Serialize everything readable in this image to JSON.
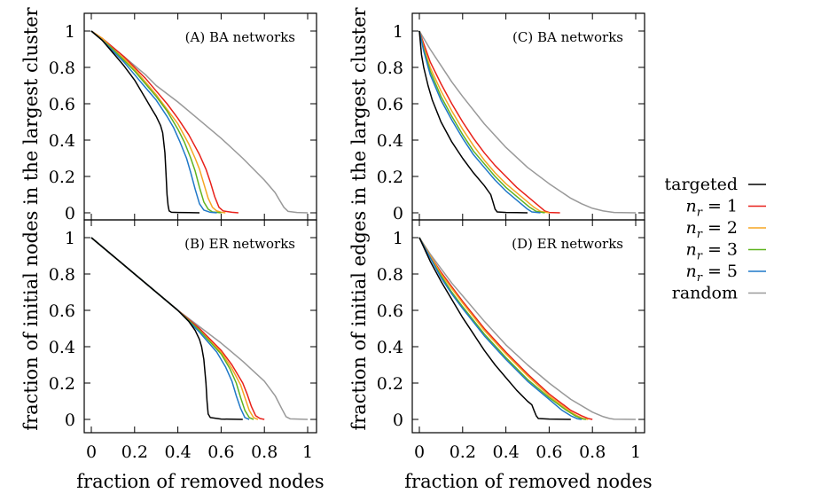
{
  "figure": {
    "xlabel": "fraction of removed nodes",
    "ylabel_left": "fraction of initial nodes in the largest cluster",
    "ylabel_right": "fraction of initial edges in the largest cluster"
  },
  "legend": {
    "placement": "right",
    "entries": [
      {
        "key": "targeted",
        "label": "targeted",
        "color": "#000000"
      },
      {
        "key": "nr1",
        "label": "n",
        "sub": "r",
        "suffix": " = 1",
        "color": "#e8211a"
      },
      {
        "key": "nr2",
        "label": "n",
        "sub": "r",
        "suffix": " = 2",
        "color": "#f5a623"
      },
      {
        "key": "nr3",
        "label": "n",
        "sub": "r",
        "suffix": " = 3",
        "color": "#5fb31f"
      },
      {
        "key": "nr5",
        "label": "n",
        "sub": "r",
        "suffix": " = 5",
        "color": "#1f78c8"
      },
      {
        "key": "random",
        "label": "random",
        "color": "#999999"
      }
    ]
  },
  "chart_data": [
    {
      "type": "line",
      "panel": "A",
      "title": "(A)  BA networks",
      "xlim": [
        0,
        1
      ],
      "ylim": [
        0,
        1
      ],
      "xticks": [
        "0",
        "0.2",
        "0.4",
        "0.6",
        "0.8",
        "1"
      ],
      "yticks": [
        "0",
        "0.2",
        "0.4",
        "0.6",
        "0.8",
        "1"
      ],
      "series": [
        {
          "key": "targeted",
          "x": [
            0,
            0.05,
            0.1,
            0.15,
            0.2,
            0.25,
            0.28,
            0.3,
            0.32,
            0.33,
            0.34,
            0.345,
            0.35,
            0.355,
            0.36,
            0.37,
            0.4,
            0.45,
            0.5
          ],
          "y": [
            1,
            0.95,
            0.88,
            0.81,
            0.73,
            0.63,
            0.57,
            0.53,
            0.48,
            0.44,
            0.33,
            0.22,
            0.1,
            0.04,
            0.01,
            0.003,
            0.002,
            0.001,
            0
          ]
        },
        {
          "key": "nr1",
          "x": [
            0,
            0.05,
            0.1,
            0.15,
            0.2,
            0.25,
            0.3,
            0.35,
            0.4,
            0.45,
            0.5,
            0.53,
            0.55,
            0.57,
            0.59,
            0.61,
            0.65,
            0.68
          ],
          "y": [
            1,
            0.96,
            0.91,
            0.86,
            0.8,
            0.74,
            0.67,
            0.6,
            0.52,
            0.43,
            0.32,
            0.24,
            0.17,
            0.09,
            0.03,
            0.01,
            0.003,
            0
          ]
        },
        {
          "key": "nr2",
          "x": [
            0,
            0.05,
            0.1,
            0.15,
            0.2,
            0.25,
            0.3,
            0.35,
            0.4,
            0.45,
            0.48,
            0.5,
            0.52,
            0.54,
            0.56,
            0.58,
            0.6,
            0.62
          ],
          "y": [
            1,
            0.96,
            0.9,
            0.85,
            0.79,
            0.72,
            0.65,
            0.57,
            0.49,
            0.38,
            0.3,
            0.24,
            0.16,
            0.08,
            0.03,
            0.01,
            0.003,
            0
          ]
        },
        {
          "key": "nr3",
          "x": [
            0,
            0.05,
            0.1,
            0.15,
            0.2,
            0.25,
            0.3,
            0.35,
            0.4,
            0.43,
            0.46,
            0.48,
            0.5,
            0.52,
            0.54,
            0.56,
            0.6
          ],
          "y": [
            1,
            0.95,
            0.9,
            0.84,
            0.78,
            0.71,
            0.64,
            0.56,
            0.46,
            0.39,
            0.3,
            0.23,
            0.14,
            0.06,
            0.02,
            0.005,
            0
          ]
        },
        {
          "key": "nr5",
          "x": [
            0,
            0.05,
            0.1,
            0.15,
            0.2,
            0.25,
            0.3,
            0.35,
            0.38,
            0.41,
            0.44,
            0.46,
            0.48,
            0.5,
            0.52,
            0.55,
            0.58
          ],
          "y": [
            1,
            0.95,
            0.89,
            0.83,
            0.76,
            0.69,
            0.62,
            0.53,
            0.47,
            0.39,
            0.3,
            0.22,
            0.13,
            0.05,
            0.015,
            0.003,
            0
          ]
        },
        {
          "key": "random",
          "x": [
            0,
            0.05,
            0.1,
            0.15,
            0.2,
            0.25,
            0.3,
            0.4,
            0.5,
            0.6,
            0.7,
            0.8,
            0.85,
            0.87,
            0.89,
            0.91,
            0.95,
            1.0
          ],
          "y": [
            1,
            0.96,
            0.91,
            0.86,
            0.81,
            0.76,
            0.7,
            0.61,
            0.51,
            0.41,
            0.3,
            0.18,
            0.11,
            0.07,
            0.03,
            0.008,
            0.002,
            0
          ]
        }
      ]
    },
    {
      "type": "line",
      "panel": "B",
      "title": "(B)  ER networks",
      "xlim": [
        0,
        1
      ],
      "ylim": [
        0,
        1
      ],
      "xticks": [
        "0",
        "0.2",
        "0.4",
        "0.6",
        "0.8",
        "1"
      ],
      "yticks": [
        "0",
        "0.2",
        "0.4",
        "0.6",
        "0.8",
        "1"
      ],
      "series": [
        {
          "key": "targeted",
          "x": [
            0,
            0.1,
            0.2,
            0.3,
            0.4,
            0.45,
            0.48,
            0.5,
            0.51,
            0.52,
            0.53,
            0.535,
            0.54,
            0.55,
            0.6,
            0.7
          ],
          "y": [
            1,
            0.9,
            0.8,
            0.7,
            0.6,
            0.54,
            0.49,
            0.44,
            0.4,
            0.33,
            0.2,
            0.1,
            0.03,
            0.01,
            0.002,
            0
          ]
        },
        {
          "key": "nr1",
          "x": [
            0,
            0.1,
            0.2,
            0.3,
            0.4,
            0.5,
            0.6,
            0.65,
            0.7,
            0.72,
            0.74,
            0.76,
            0.78,
            0.8
          ],
          "y": [
            1,
            0.9,
            0.8,
            0.7,
            0.6,
            0.5,
            0.38,
            0.3,
            0.2,
            0.14,
            0.07,
            0.02,
            0.005,
            0
          ]
        },
        {
          "key": "nr2",
          "x": [
            0,
            0.1,
            0.2,
            0.3,
            0.4,
            0.5,
            0.6,
            0.65,
            0.69,
            0.71,
            0.73,
            0.75,
            0.77
          ],
          "y": [
            1,
            0.9,
            0.8,
            0.7,
            0.6,
            0.49,
            0.37,
            0.28,
            0.19,
            0.12,
            0.05,
            0.01,
            0
          ]
        },
        {
          "key": "nr3",
          "x": [
            0,
            0.1,
            0.2,
            0.3,
            0.4,
            0.5,
            0.6,
            0.64,
            0.67,
            0.69,
            0.71,
            0.73,
            0.75
          ],
          "y": [
            1,
            0.9,
            0.8,
            0.7,
            0.6,
            0.49,
            0.36,
            0.28,
            0.2,
            0.12,
            0.05,
            0.01,
            0
          ]
        },
        {
          "key": "nr5",
          "x": [
            0,
            0.1,
            0.2,
            0.3,
            0.4,
            0.5,
            0.58,
            0.62,
            0.65,
            0.67,
            0.69,
            0.71,
            0.73
          ],
          "y": [
            1,
            0.9,
            0.8,
            0.7,
            0.6,
            0.48,
            0.37,
            0.29,
            0.21,
            0.13,
            0.06,
            0.01,
            0
          ]
        },
        {
          "key": "random",
          "x": [
            0,
            0.1,
            0.2,
            0.3,
            0.4,
            0.5,
            0.6,
            0.7,
            0.8,
            0.85,
            0.88,
            0.9,
            0.92,
            1.0
          ],
          "y": [
            1,
            0.9,
            0.8,
            0.7,
            0.6,
            0.51,
            0.42,
            0.32,
            0.21,
            0.13,
            0.06,
            0.015,
            0.003,
            0
          ]
        }
      ]
    },
    {
      "type": "line",
      "panel": "C",
      "title": "(C)  BA networks",
      "xlim": [
        0,
        1
      ],
      "ylim": [
        0,
        1
      ],
      "xticks": [
        "0",
        "0.2",
        "0.4",
        "0.6",
        "0.8",
        "1"
      ],
      "yticks": [
        "0",
        "0.2",
        "0.4",
        "0.6",
        "0.8",
        "1"
      ],
      "series": [
        {
          "key": "targeted",
          "x": [
            0,
            0.01,
            0.02,
            0.04,
            0.06,
            0.1,
            0.15,
            0.2,
            0.25,
            0.3,
            0.33,
            0.34,
            0.35,
            0.36,
            0.4,
            0.45,
            0.5
          ],
          "y": [
            1,
            0.87,
            0.8,
            0.7,
            0.62,
            0.5,
            0.39,
            0.3,
            0.22,
            0.15,
            0.1,
            0.06,
            0.02,
            0.005,
            0.002,
            0.001,
            0
          ]
        },
        {
          "key": "nr1",
          "x": [
            0,
            0.02,
            0.05,
            0.1,
            0.15,
            0.2,
            0.25,
            0.3,
            0.35,
            0.4,
            0.45,
            0.5,
            0.55,
            0.58,
            0.6,
            0.65
          ],
          "y": [
            1,
            0.93,
            0.83,
            0.71,
            0.6,
            0.5,
            0.41,
            0.33,
            0.26,
            0.2,
            0.14,
            0.09,
            0.04,
            0.01,
            0.002,
            0
          ]
        },
        {
          "key": "nr2",
          "x": [
            0,
            0.02,
            0.05,
            0.1,
            0.15,
            0.2,
            0.25,
            0.3,
            0.35,
            0.4,
            0.45,
            0.5,
            0.53,
            0.56,
            0.6
          ],
          "y": [
            1,
            0.91,
            0.8,
            0.67,
            0.56,
            0.46,
            0.37,
            0.29,
            0.22,
            0.16,
            0.11,
            0.06,
            0.03,
            0.008,
            0
          ]
        },
        {
          "key": "nr3",
          "x": [
            0,
            0.02,
            0.05,
            0.1,
            0.15,
            0.2,
            0.25,
            0.3,
            0.35,
            0.4,
            0.45,
            0.48,
            0.51,
            0.54,
            0.58
          ],
          "y": [
            1,
            0.9,
            0.78,
            0.64,
            0.53,
            0.43,
            0.34,
            0.27,
            0.2,
            0.14,
            0.09,
            0.06,
            0.03,
            0.008,
            0
          ]
        },
        {
          "key": "nr5",
          "x": [
            0,
            0.02,
            0.05,
            0.1,
            0.15,
            0.2,
            0.25,
            0.3,
            0.35,
            0.4,
            0.45,
            0.48,
            0.5,
            0.52,
            0.56
          ],
          "y": [
            1,
            0.89,
            0.76,
            0.62,
            0.51,
            0.41,
            0.32,
            0.25,
            0.18,
            0.12,
            0.07,
            0.04,
            0.02,
            0.005,
            0
          ]
        },
        {
          "key": "random",
          "x": [
            0,
            0.05,
            0.1,
            0.15,
            0.2,
            0.3,
            0.4,
            0.5,
            0.6,
            0.7,
            0.75,
            0.8,
            0.85,
            0.9,
            1.0
          ],
          "y": [
            1,
            0.9,
            0.81,
            0.72,
            0.64,
            0.49,
            0.36,
            0.25,
            0.16,
            0.08,
            0.05,
            0.025,
            0.01,
            0.002,
            0
          ]
        }
      ]
    },
    {
      "type": "line",
      "panel": "D",
      "title": "(D)  ER networks",
      "xlim": [
        0,
        1
      ],
      "ylim": [
        0,
        1
      ],
      "xticks": [
        "0",
        "0.2",
        "0.4",
        "0.6",
        "0.8",
        "1"
      ],
      "yticks": [
        "0",
        "0.2",
        "0.4",
        "0.6",
        "0.8",
        "1"
      ],
      "series": [
        {
          "key": "targeted",
          "x": [
            0,
            0.05,
            0.1,
            0.15,
            0.2,
            0.25,
            0.3,
            0.35,
            0.4,
            0.45,
            0.5,
            0.52,
            0.53,
            0.54,
            0.55,
            0.6,
            0.7
          ],
          "y": [
            1,
            0.87,
            0.76,
            0.66,
            0.56,
            0.47,
            0.38,
            0.3,
            0.23,
            0.16,
            0.1,
            0.08,
            0.05,
            0.02,
            0.005,
            0.002,
            0
          ]
        },
        {
          "key": "nr1",
          "x": [
            0,
            0.05,
            0.1,
            0.15,
            0.2,
            0.3,
            0.4,
            0.5,
            0.6,
            0.7,
            0.75,
            0.78,
            0.8
          ],
          "y": [
            1,
            0.9,
            0.81,
            0.73,
            0.65,
            0.5,
            0.37,
            0.25,
            0.14,
            0.05,
            0.02,
            0.005,
            0
          ]
        },
        {
          "key": "nr2",
          "x": [
            0,
            0.05,
            0.1,
            0.15,
            0.2,
            0.3,
            0.4,
            0.5,
            0.6,
            0.7,
            0.73,
            0.76,
            0.78
          ],
          "y": [
            1,
            0.9,
            0.8,
            0.72,
            0.64,
            0.49,
            0.36,
            0.24,
            0.13,
            0.04,
            0.02,
            0.004,
            0
          ]
        },
        {
          "key": "nr3",
          "x": [
            0,
            0.05,
            0.1,
            0.15,
            0.2,
            0.3,
            0.4,
            0.5,
            0.6,
            0.68,
            0.72,
            0.75,
            0.77
          ],
          "y": [
            1,
            0.89,
            0.79,
            0.7,
            0.62,
            0.47,
            0.34,
            0.22,
            0.12,
            0.05,
            0.02,
            0.004,
            0
          ]
        },
        {
          "key": "nr5",
          "x": [
            0,
            0.05,
            0.1,
            0.15,
            0.2,
            0.3,
            0.4,
            0.5,
            0.6,
            0.66,
            0.7,
            0.73,
            0.75
          ],
          "y": [
            1,
            0.89,
            0.78,
            0.69,
            0.61,
            0.46,
            0.33,
            0.21,
            0.11,
            0.05,
            0.02,
            0.004,
            0
          ]
        },
        {
          "key": "random",
          "x": [
            0,
            0.05,
            0.1,
            0.15,
            0.2,
            0.3,
            0.4,
            0.5,
            0.6,
            0.7,
            0.8,
            0.85,
            0.88,
            0.9,
            1.0
          ],
          "y": [
            1,
            0.91,
            0.83,
            0.75,
            0.68,
            0.54,
            0.41,
            0.3,
            0.2,
            0.11,
            0.04,
            0.015,
            0.005,
            0.001,
            0
          ]
        }
      ]
    }
  ]
}
